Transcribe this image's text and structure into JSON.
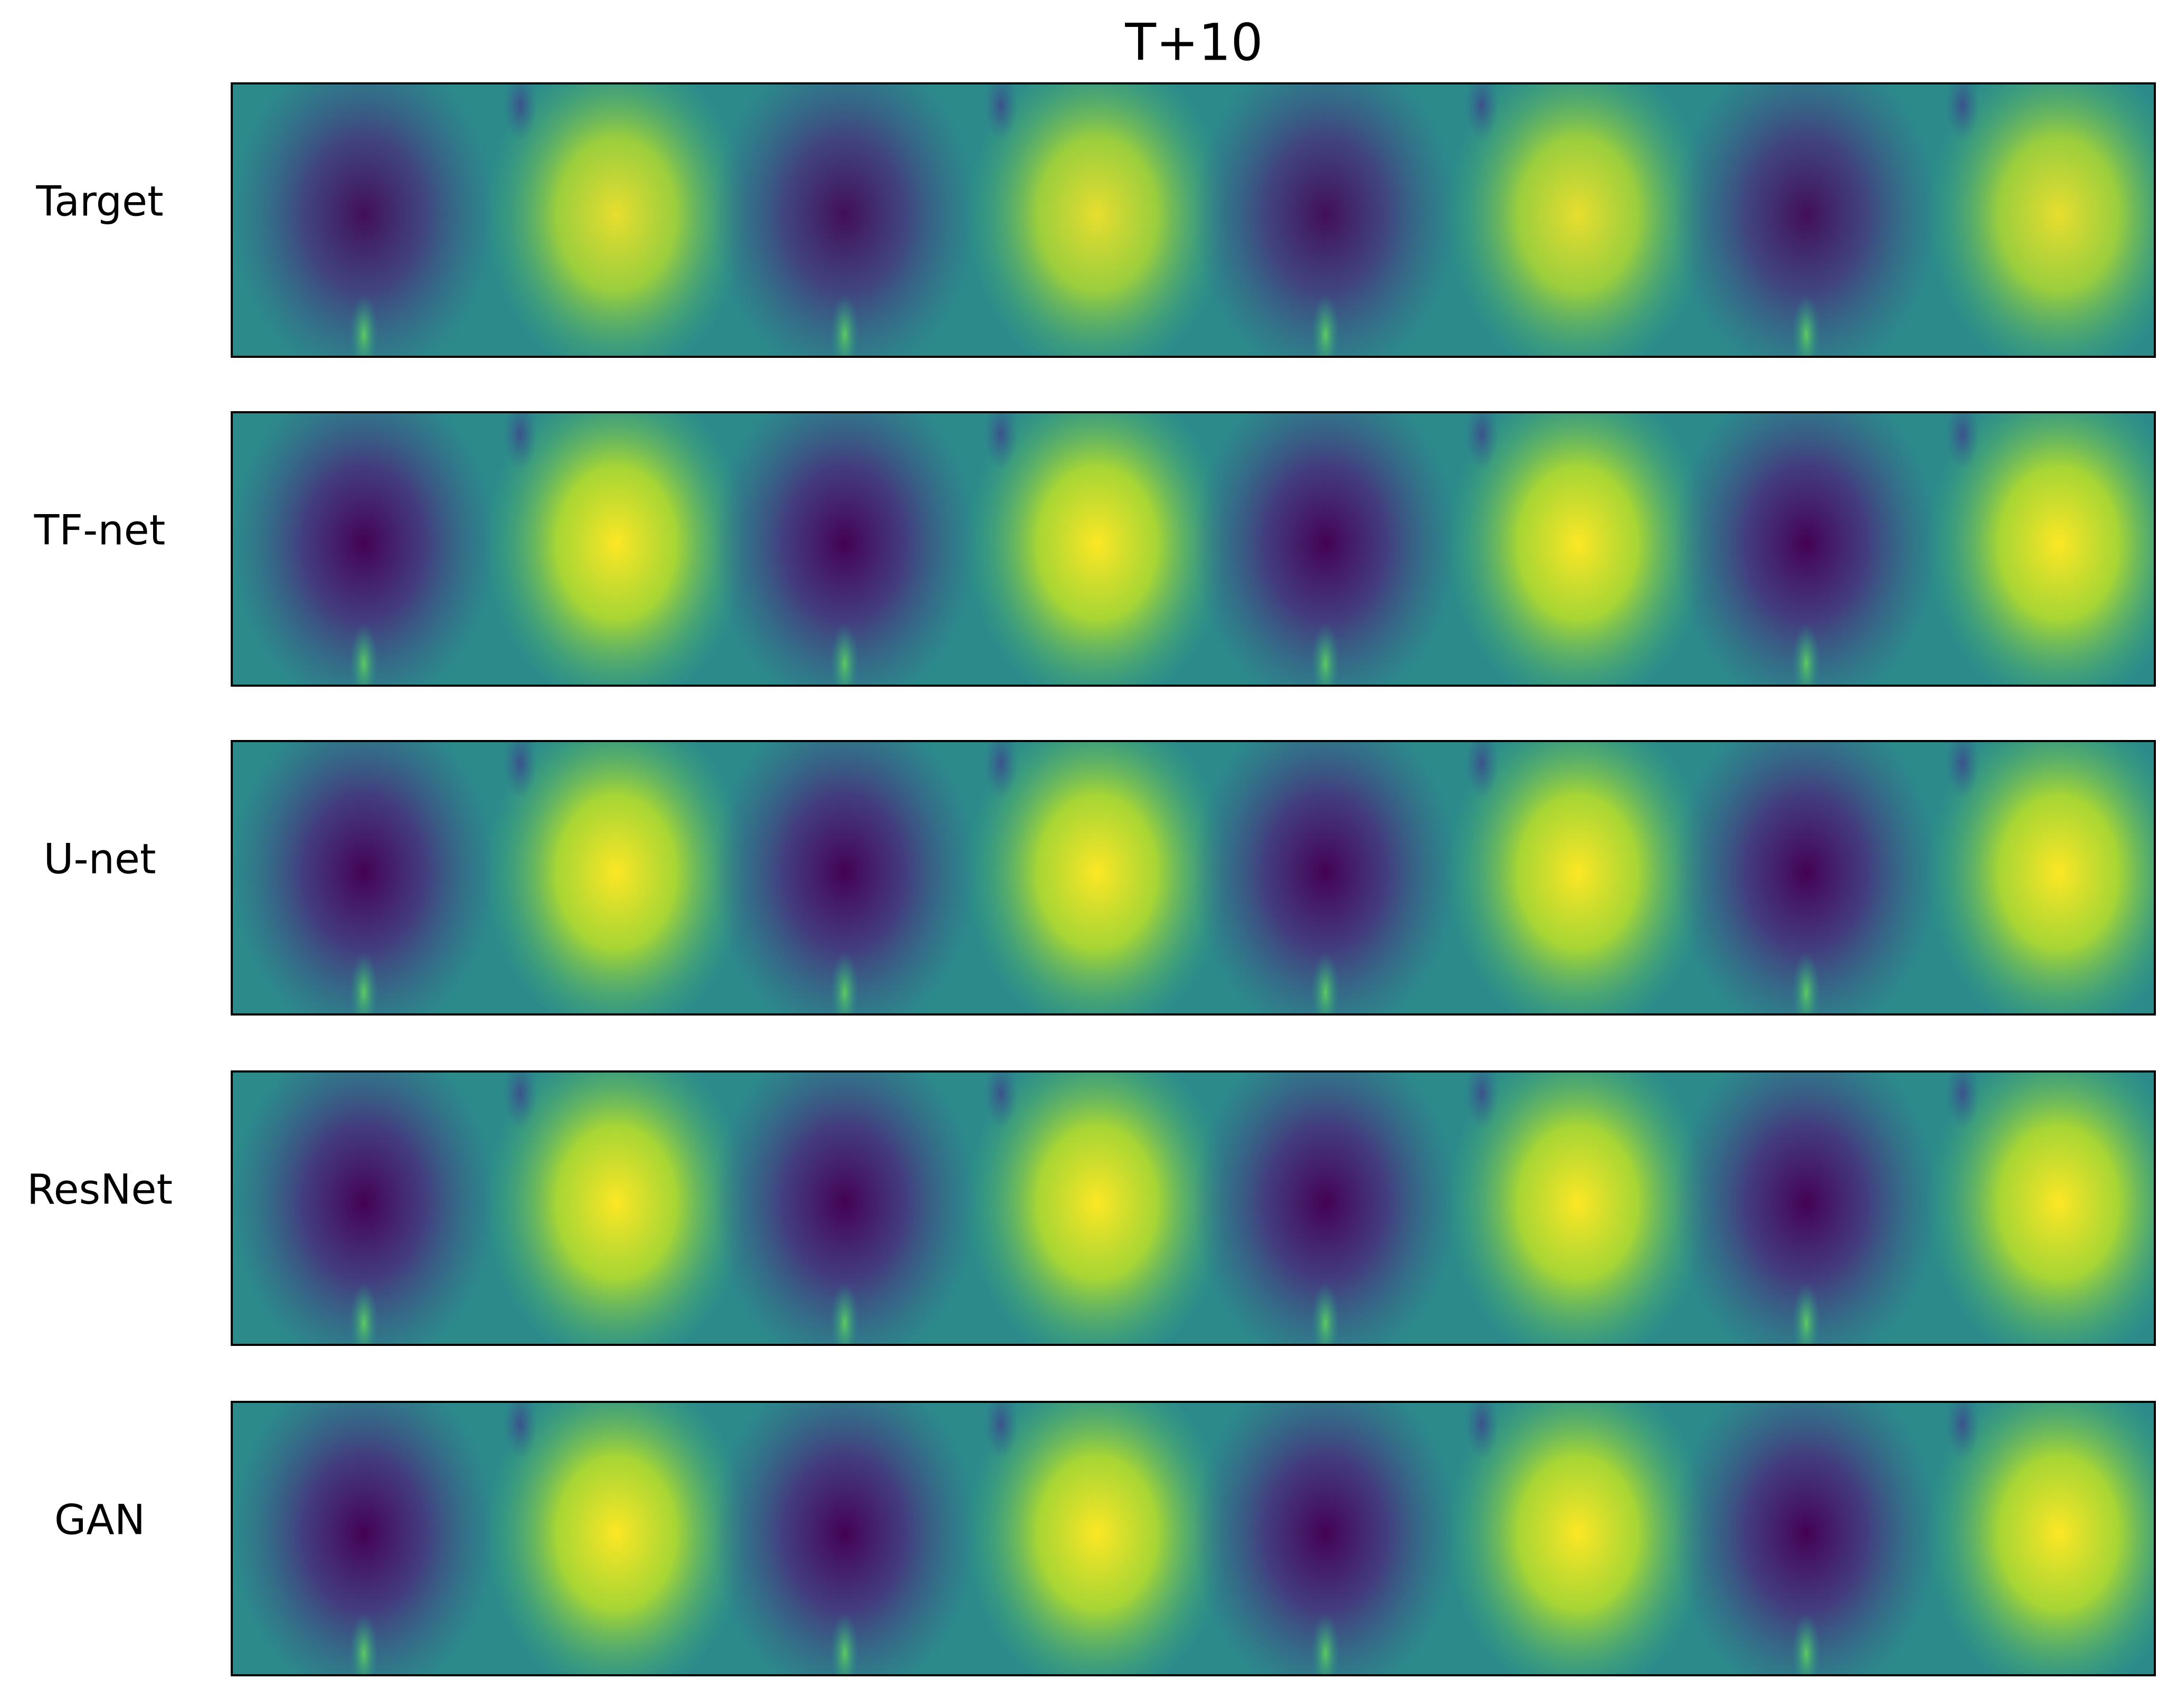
{
  "title": "T+10",
  "rows": [
    {
      "label": "Target"
    },
    {
      "label": "TF-net"
    },
    {
      "label": "U-net"
    },
    {
      "label": "ResNet"
    },
    {
      "label": "GAN"
    }
  ]
}
